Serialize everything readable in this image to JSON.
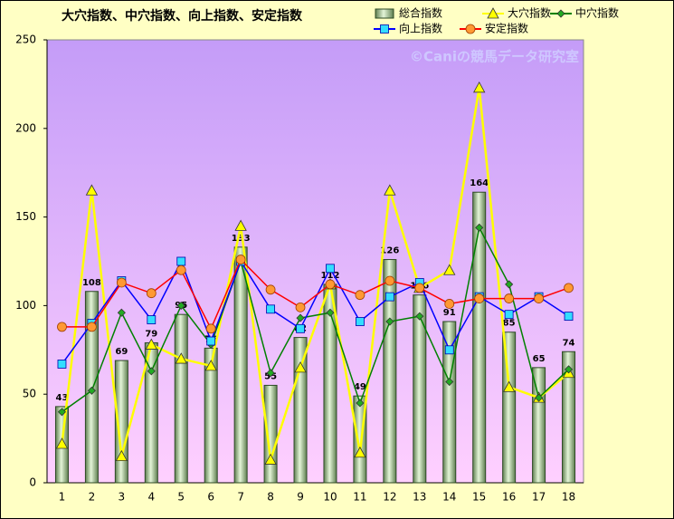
{
  "chart_data": {
    "type": "bar",
    "title": "大穴指数、中穴指数、向上指数、安定指数",
    "watermark": "©Caniの競馬データ研究室",
    "categories": [
      "1",
      "2",
      "3",
      "4",
      "5",
      "6",
      "7",
      "8",
      "9",
      "10",
      "11",
      "12",
      "13",
      "14",
      "15",
      "16",
      "17",
      "18"
    ],
    "ylim": [
      0,
      250
    ],
    "yticks": [
      0,
      50,
      100,
      150,
      200,
      250
    ],
    "series": [
      {
        "name": "総合指数",
        "type": "bar",
        "color": "#9bbb89",
        "values": [
          43,
          108,
          69,
          79,
          95,
          76,
          133,
          55,
          82,
          112,
          49,
          126,
          106,
          91,
          164,
          85,
          65,
          74
        ]
      },
      {
        "name": "大穴指数",
        "type": "line",
        "color": "#ffff00",
        "marker": "triangle",
        "marker_color": "#ffff00",
        "values": [
          22,
          165,
          15,
          78,
          70,
          66,
          145,
          13,
          65,
          112,
          17,
          165,
          110,
          120,
          223,
          54,
          48,
          62
        ]
      },
      {
        "name": "中穴指数",
        "type": "line",
        "color": "#008000",
        "marker": "diamond",
        "marker_color": "#22aa22",
        "values": [
          40,
          52,
          96,
          63,
          100,
          78,
          125,
          62,
          93,
          96,
          45,
          91,
          94,
          57,
          144,
          112,
          48,
          64
        ]
      },
      {
        "name": "向上指数",
        "type": "line",
        "color": "#0000ff",
        "marker": "square",
        "marker_color": "#33ddff",
        "values": [
          67,
          90,
          114,
          92,
          125,
          80,
          125,
          98,
          87,
          121,
          91,
          105,
          113,
          75,
          105,
          95,
          105,
          94
        ]
      },
      {
        "name": "安定指数",
        "type": "line",
        "color": "#ff0000",
        "marker": "circle",
        "marker_color": "#ff9933",
        "values": [
          88,
          88,
          113,
          107,
          120,
          87,
          126,
          109,
          99,
          112,
          106,
          114,
          110,
          101,
          104,
          104,
          104,
          110
        ]
      }
    ]
  }
}
